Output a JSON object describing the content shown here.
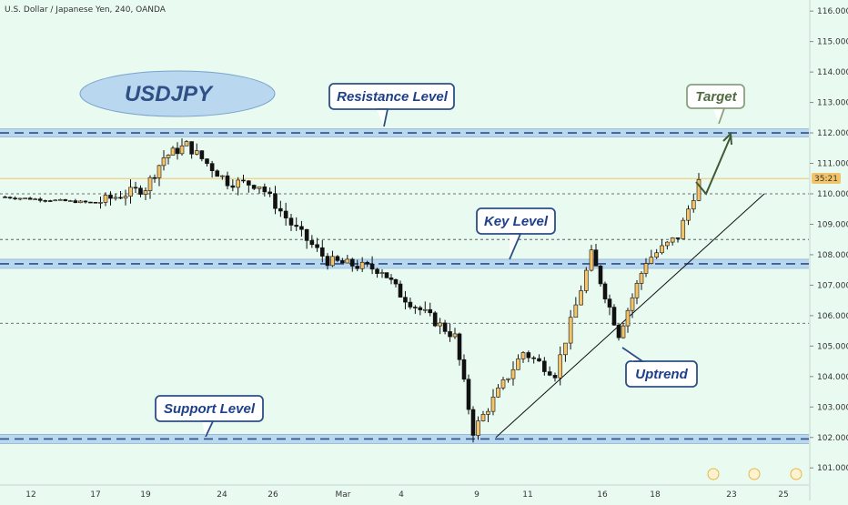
{
  "header": {
    "title": "U.S. Dollar / Japanese Yen, 240, OANDA"
  },
  "labels": {
    "symbol": "USDJPY",
    "resistance": "Resistance Level",
    "key": "Key Level",
    "support": "Support Level",
    "uptrend": "Uptrend",
    "target": "Target",
    "price_tag": "35:21"
  },
  "colors": {
    "background": "#e9faf0",
    "up_candle": "#f4c46b",
    "down_candle": "#111111",
    "zone_fill": "#b9d8ef",
    "zone_dash": "#2c4f85",
    "callout_border": "#2c4f85",
    "target_arrow": "#3f5a35",
    "current_price_line": "#f2c46a"
  },
  "chart_data": {
    "type": "candlestick",
    "title": "U.S. Dollar / Japanese Yen, 240, OANDA",
    "y_axis": {
      "side": "right",
      "range": [
        100.6,
        116.2
      ],
      "ticks": [
        "101.000",
        "102.000",
        "103.000",
        "104.000",
        "105.000",
        "106.000",
        "107.000",
        "108.000",
        "109.000",
        "110.000",
        "111.000",
        "112.000",
        "113.000",
        "114.000",
        "115.000",
        "116.000"
      ]
    },
    "x_axis": {
      "ticks": [
        "12",
        "17",
        "19",
        "24",
        "26",
        "Mar",
        "4",
        "9",
        "11",
        "16",
        "18",
        "23",
        "25"
      ]
    },
    "levels": [
      {
        "name": "Resistance Level",
        "price": 112.0,
        "zone": [
          111.87,
          112.13
        ]
      },
      {
        "name": "Key Level",
        "price": 107.7,
        "zone": [
          107.55,
          107.85
        ]
      },
      {
        "name": "Support Level",
        "price": 101.95,
        "zone": [
          101.8,
          102.1
        ]
      }
    ],
    "dotted_levels": [
      110.0,
      108.5,
      105.75
    ],
    "current_price": 110.5,
    "target_price": 111.95,
    "trendline": {
      "from": [
        "9",
        102.0
      ],
      "to": [
        "23",
        110.0
      ]
    },
    "path": [
      [
        "12",
        109.9
      ],
      [
        "17",
        109.7
      ],
      [
        "19",
        110.2
      ],
      [
        "19",
        111.2
      ],
      [
        "24",
        111.6
      ],
      [
        "24",
        110.4
      ],
      [
        "26",
        110.3
      ],
      [
        "26",
        109.0
      ],
      [
        "Mar",
        107.8
      ],
      [
        "4",
        107.5
      ],
      [
        "4",
        106.7
      ],
      [
        "9",
        105.3
      ],
      [
        "9",
        102.2
      ],
      [
        "11",
        104.8
      ],
      [
        "11",
        104.1
      ],
      [
        "16",
        108.0
      ],
      [
        "16",
        105.4
      ],
      [
        "18",
        107.8
      ],
      [
        "18",
        108.6
      ],
      [
        "23",
        110.4
      ]
    ]
  }
}
